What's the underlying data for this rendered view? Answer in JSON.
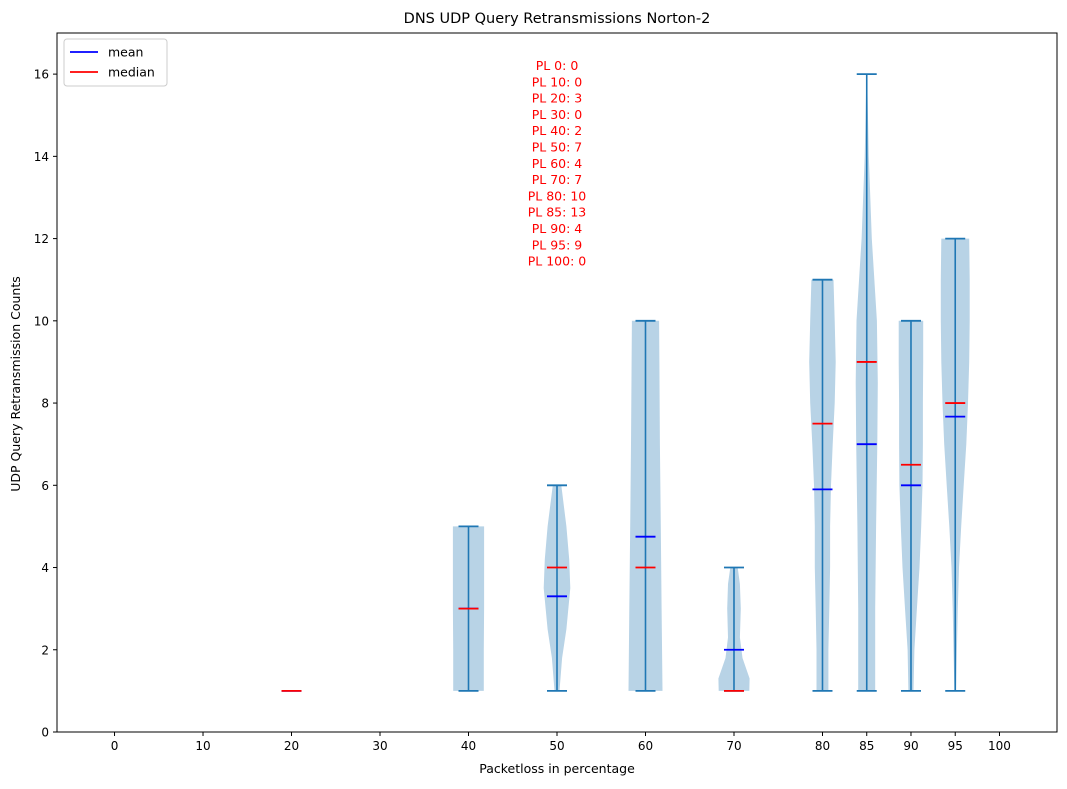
{
  "chart_data": {
    "type": "violin",
    "title": "DNS UDP Query Retransmissions Norton-2",
    "xlabel": "Packetloss in percentage",
    "ylabel": "UDP Query Retransmission Counts",
    "ylim": [
      0,
      17
    ],
    "yticks": [
      0,
      2,
      4,
      6,
      8,
      10,
      12,
      14,
      16
    ],
    "xticks": [
      0,
      10,
      20,
      30,
      40,
      50,
      60,
      70,
      80,
      85,
      90,
      95,
      100
    ],
    "legend": {
      "position": "top-left",
      "entries": [
        {
          "label": "mean",
          "color": "#0000ff"
        },
        {
          "label": "median",
          "color": "#ff0000"
        }
      ]
    },
    "colors": {
      "body": "#b8d3e6",
      "whisker": "#1f77b4",
      "mean": "#0000ff",
      "median": "#ff0000"
    },
    "annotation": [
      "PL 0: 0",
      "PL 10: 0",
      "PL 20: 3",
      "PL 30: 0",
      "PL 40: 2",
      "PL 50: 7",
      "PL 60: 4",
      "PL 70: 7",
      "PL 80: 10",
      "PL 85: 13",
      "PL 90: 4",
      "PL 95: 9",
      "PL 100: 0"
    ],
    "groups": [
      {
        "x": 20,
        "min": 1,
        "max": 1,
        "mean": 1,
        "median": 1,
        "profile": []
      },
      {
        "x": 40,
        "min": 1,
        "max": 5,
        "mean": 3,
        "median": 3,
        "profile": [
          [
            1,
            0.9
          ],
          [
            2,
            0.9
          ],
          [
            3,
            0.92
          ],
          [
            4,
            0.92
          ],
          [
            5,
            0.92
          ]
        ]
      },
      {
        "x": 50,
        "min": 1,
        "max": 6,
        "mean": 3.3,
        "median": 4,
        "profile": [
          [
            1,
            0.15
          ],
          [
            1.8,
            0.3
          ],
          [
            2.5,
            0.55
          ],
          [
            3.5,
            0.78
          ],
          [
            4.2,
            0.72
          ],
          [
            5,
            0.55
          ],
          [
            6,
            0.25
          ]
        ]
      },
      {
        "x": 60,
        "min": 1,
        "max": 10,
        "mean": 4.75,
        "median": 4,
        "profile": [
          [
            1,
            1.0
          ],
          [
            3,
            0.95
          ],
          [
            5,
            0.9
          ],
          [
            7,
            0.85
          ],
          [
            9,
            0.82
          ],
          [
            10,
            0.8
          ]
        ]
      },
      {
        "x": 70,
        "min": 1,
        "max": 4,
        "mean": 2,
        "median": 1,
        "profile": [
          [
            1,
            0.9
          ],
          [
            1.3,
            0.92
          ],
          [
            1.8,
            0.5
          ],
          [
            2.3,
            0.35
          ],
          [
            3,
            0.4
          ],
          [
            3.6,
            0.35
          ],
          [
            4,
            0.22
          ]
        ]
      },
      {
        "x": 80,
        "min": 1,
        "max": 11,
        "mean": 5.9,
        "median": 7.5,
        "profile": [
          [
            1,
            0.35
          ],
          [
            2,
            0.35
          ],
          [
            3,
            0.4
          ],
          [
            4,
            0.45
          ],
          [
            5,
            0.45
          ],
          [
            6,
            0.5
          ],
          [
            7,
            0.6
          ],
          [
            8,
            0.72
          ],
          [
            9,
            0.78
          ],
          [
            10,
            0.72
          ],
          [
            11,
            0.65
          ]
        ]
      },
      {
        "x": 85,
        "min": 1,
        "max": 16,
        "mean": 7,
        "median": 9,
        "profile": [
          [
            1,
            0.5
          ],
          [
            3,
            0.5
          ],
          [
            5,
            0.55
          ],
          [
            7,
            0.62
          ],
          [
            8.5,
            0.65
          ],
          [
            10,
            0.6
          ],
          [
            12,
            0.3
          ],
          [
            14,
            0.12
          ],
          [
            16,
            0.02
          ]
        ]
      },
      {
        "x": 90,
        "min": 1,
        "max": 10,
        "mean": 6,
        "median": 6.5,
        "profile": [
          [
            1,
            0.15
          ],
          [
            2,
            0.2
          ],
          [
            3,
            0.35
          ],
          [
            4,
            0.5
          ],
          [
            5,
            0.6
          ],
          [
            6,
            0.68
          ],
          [
            7,
            0.7
          ],
          [
            8,
            0.7
          ],
          [
            9,
            0.72
          ],
          [
            10,
            0.72
          ]
        ]
      },
      {
        "x": 95,
        "min": 1,
        "max": 12,
        "mean": 7.67,
        "median": 8,
        "profile": [
          [
            1,
            0.05
          ],
          [
            2,
            0.1
          ],
          [
            3,
            0.15
          ],
          [
            4,
            0.22
          ],
          [
            5,
            0.35
          ],
          [
            6,
            0.5
          ],
          [
            7,
            0.65
          ],
          [
            8,
            0.75
          ],
          [
            9,
            0.82
          ],
          [
            10,
            0.85
          ],
          [
            11,
            0.85
          ],
          [
            12,
            0.82
          ]
        ]
      }
    ]
  }
}
